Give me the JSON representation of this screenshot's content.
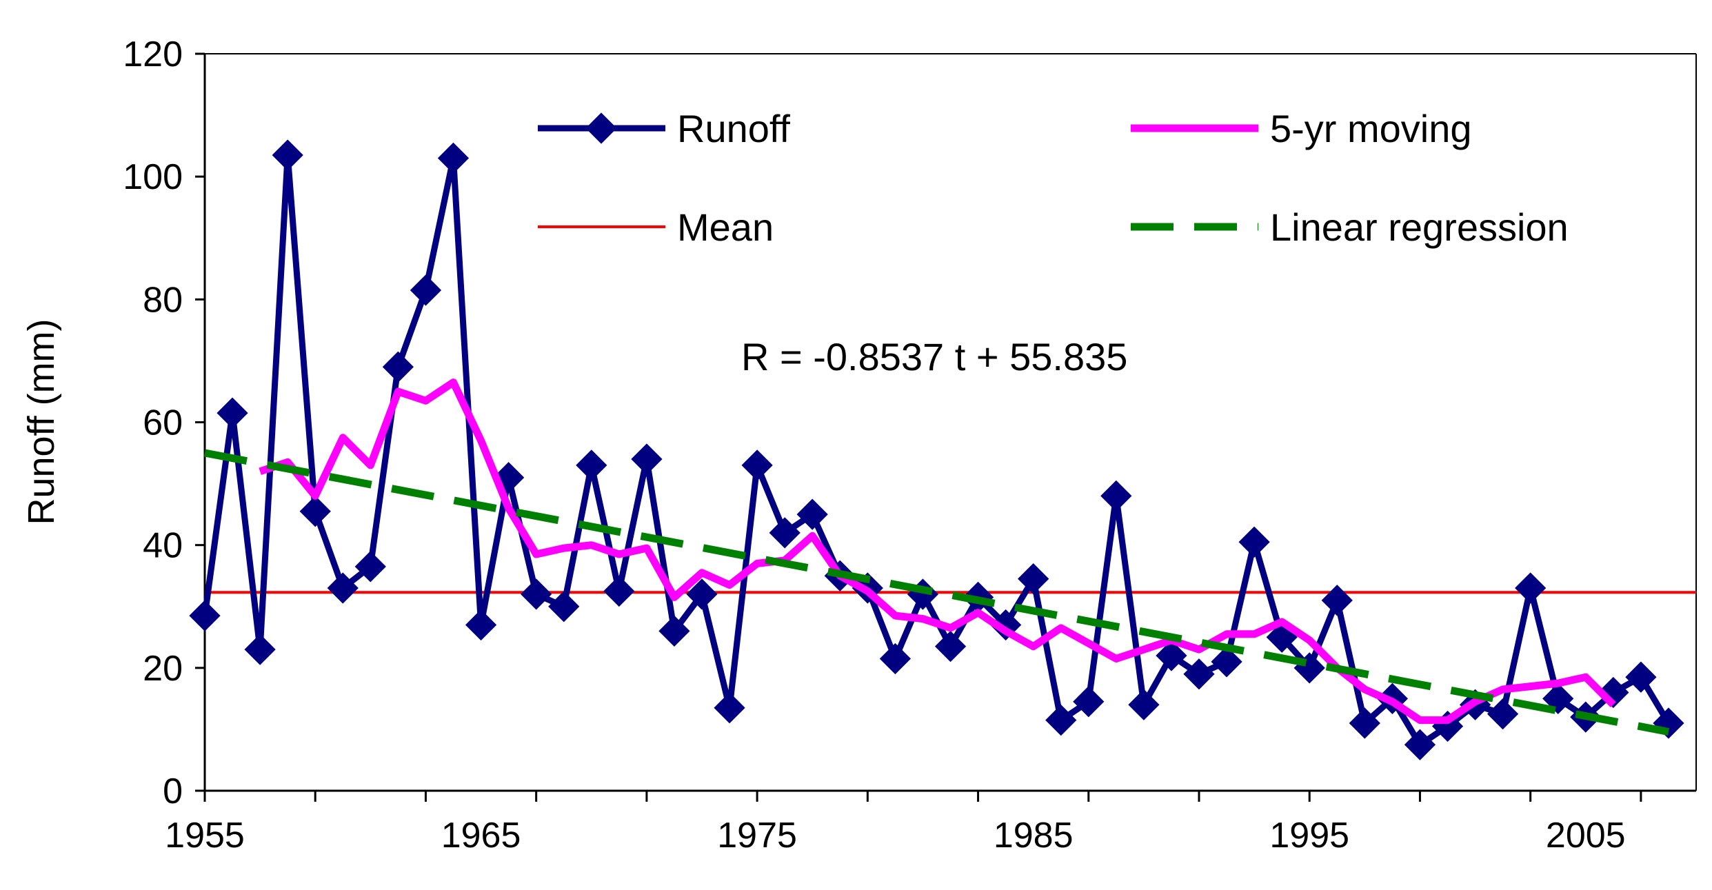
{
  "chart_data": {
    "type": "line",
    "xlabel": "",
    "ylabel": "Runoff (mm)",
    "xlim": [
      1955,
      2009
    ],
    "ylim": [
      0,
      120
    ],
    "x_ticks": [
      1955,
      1965,
      1975,
      1985,
      1995,
      2005
    ],
    "y_ticks": [
      0,
      20,
      40,
      60,
      80,
      100,
      120
    ],
    "grid": false,
    "legend_position": "top",
    "equation": "R = -0.8537 t + 55.835",
    "colors": {
      "runoff": "#000080",
      "moving": "#ff00ff",
      "mean": "#ff0000",
      "regression": "#008000"
    },
    "series": [
      {
        "key": "runoff",
        "name": "Runoff",
        "x": [
          1955,
          1956,
          1957,
          1958,
          1959,
          1960,
          1961,
          1962,
          1963,
          1964,
          1965,
          1966,
          1967,
          1968,
          1969,
          1970,
          1971,
          1972,
          1973,
          1974,
          1975,
          1976,
          1977,
          1978,
          1979,
          1980,
          1981,
          1982,
          1983,
          1984,
          1985,
          1986,
          1987,
          1988,
          1989,
          1990,
          1991,
          1992,
          1993,
          1994,
          1995,
          1996,
          1997,
          1998,
          1999,
          2000,
          2001,
          2002,
          2003,
          2004,
          2005,
          2006,
          2007,
          2008
        ],
        "y": [
          28.5,
          61.5,
          23,
          103.5,
          45.5,
          33,
          36.5,
          69,
          81.5,
          103,
          27,
          51,
          32,
          30,
          53,
          32.5,
          54,
          26,
          32,
          13.5,
          53,
          42,
          45,
          35,
          33,
          21.5,
          32,
          23.5,
          31.5,
          27,
          34.5,
          11.5,
          14.5,
          48,
          14,
          22,
          19,
          21,
          40.5,
          25,
          20,
          31,
          11,
          15,
          7.5,
          10.5,
          14,
          12.5,
          33,
          15,
          12,
          16,
          18.5,
          11
        ]
      },
      {
        "key": "moving",
        "name": "5-yr moving",
        "x": [
          1957,
          1958,
          1959,
          1960,
          1961,
          1962,
          1963,
          1964,
          1965,
          1966,
          1967,
          1968,
          1969,
          1970,
          1971,
          1972,
          1973,
          1974,
          1975,
          1976,
          1977,
          1978,
          1979,
          1980,
          1981,
          1982,
          1983,
          1984,
          1985,
          1986,
          1987,
          1988,
          1989,
          1990,
          1991,
          1992,
          1993,
          1994,
          1995,
          1996,
          1997,
          1998,
          1999,
          2000,
          2001,
          2002,
          2003,
          2004,
          2005,
          2006
        ],
        "y": [
          52,
          53.5,
          48,
          57.5,
          53,
          65,
          63.5,
          66.5,
          57,
          46,
          38.5,
          39.5,
          40,
          38.5,
          39.5,
          31.5,
          35.5,
          33.5,
          37,
          37.5,
          41.5,
          35,
          32.5,
          28.5,
          28,
          26.5,
          29,
          26,
          23.5,
          26.5,
          24,
          21.5,
          23,
          24.5,
          23,
          25.5,
          25.5,
          27.5,
          24.5,
          20,
          16.5,
          14.5,
          11.5,
          11.5,
          14.5,
          16.5,
          17,
          17.5,
          18.5,
          14
        ]
      },
      {
        "key": "mean",
        "name": "Mean",
        "x": [
          1955,
          2009
        ],
        "y": [
          32.3,
          32.3
        ]
      },
      {
        "key": "regression",
        "name": "Linear regression",
        "x": [
          1955,
          2008
        ],
        "y": [
          55,
          9.6
        ]
      }
    ]
  }
}
